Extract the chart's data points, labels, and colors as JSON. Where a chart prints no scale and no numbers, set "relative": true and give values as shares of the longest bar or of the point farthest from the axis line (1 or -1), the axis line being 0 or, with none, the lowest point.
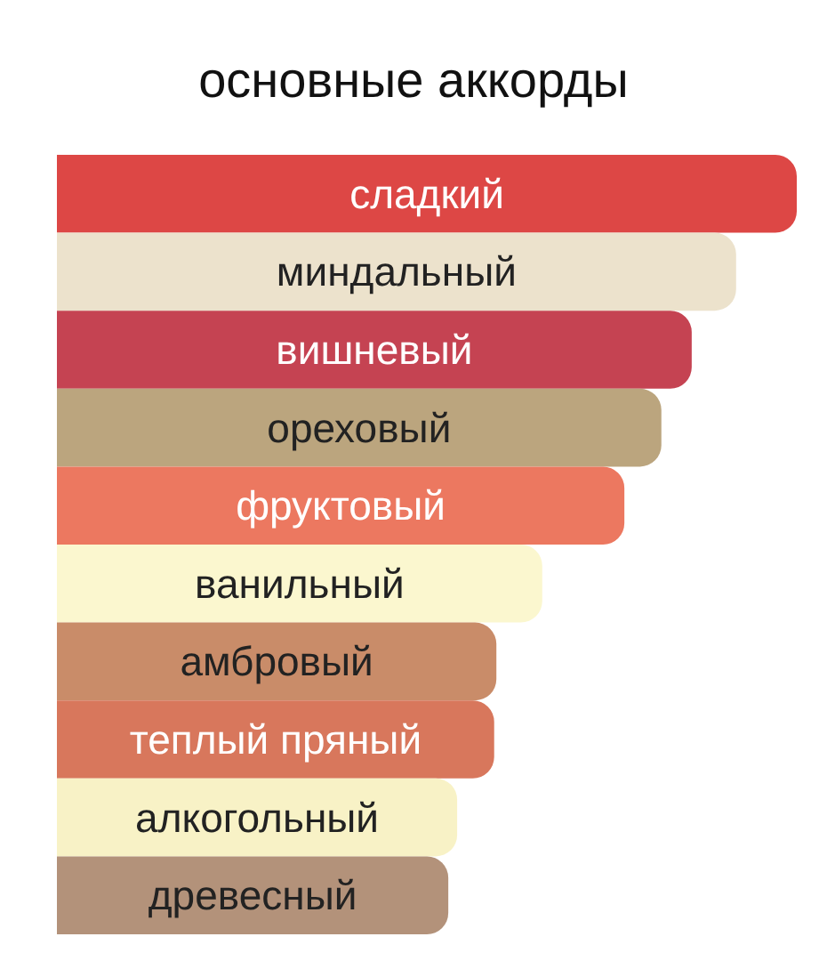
{
  "chart_data": {
    "type": "bar",
    "orientation": "horizontal",
    "relative": true,
    "title": "основные аккорды",
    "categories": [
      "сладкий",
      "миндальный",
      "вишневый",
      "ореховый",
      "фруктовый",
      "ванильный",
      "амбровый",
      "теплый пряный",
      "алкогольный",
      "древесный"
    ],
    "values": [
      1,
      0.918,
      0.858,
      0.817,
      0.767,
      0.656,
      0.594,
      0.591,
      0.541,
      0.529
    ],
    "colors": [
      "#dd4745",
      "#ece2cc",
      "#c54352",
      "#bba57e",
      "#ec7860",
      "#fbf7cf",
      "#c98c69",
      "#d8775c",
      "#f8f2c6",
      "#b3927a"
    ]
  }
}
